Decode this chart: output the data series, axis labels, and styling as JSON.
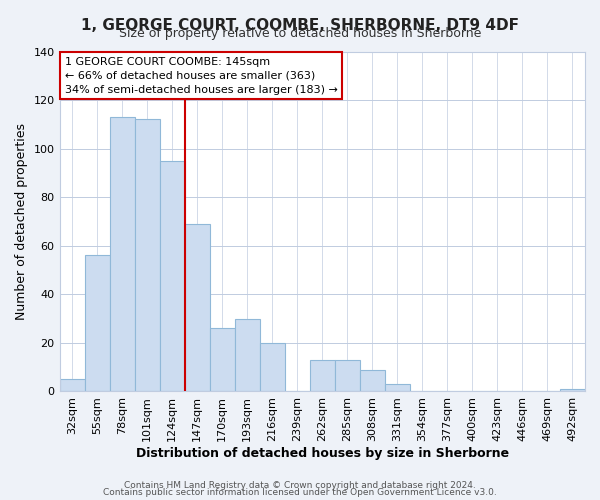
{
  "title": "1, GEORGE COURT, COOMBE, SHERBORNE, DT9 4DF",
  "subtitle": "Size of property relative to detached houses in Sherborne",
  "xlabel": "Distribution of detached houses by size in Sherborne",
  "ylabel": "Number of detached properties",
  "bar_labels": [
    "32sqm",
    "55sqm",
    "78sqm",
    "101sqm",
    "124sqm",
    "147sqm",
    "170sqm",
    "193sqm",
    "216sqm",
    "239sqm",
    "262sqm",
    "285sqm",
    "308sqm",
    "331sqm",
    "354sqm",
    "377sqm",
    "400sqm",
    "423sqm",
    "446sqm",
    "469sqm",
    "492sqm"
  ],
  "bar_values": [
    5,
    56,
    113,
    112,
    95,
    69,
    26,
    30,
    20,
    0,
    13,
    13,
    9,
    3,
    0,
    0,
    0,
    0,
    0,
    0,
    1
  ],
  "bar_color": "#ccdcf0",
  "bar_edge_color": "#90b8d8",
  "ylim": [
    0,
    140
  ],
  "yticks": [
    0,
    20,
    40,
    60,
    80,
    100,
    120,
    140
  ],
  "marker_line_index": 4,
  "annotation_title": "1 GEORGE COURT COOMBE: 145sqm",
  "annotation_line1": "← 66% of detached houses are smaller (363)",
  "annotation_line2": "34% of semi-detached houses are larger (183) →",
  "annotation_box_color": "#ffffff",
  "annotation_border_color": "#cc0000",
  "marker_line_color": "#cc0000",
  "footer_line1": "Contains HM Land Registry data © Crown copyright and database right 2024.",
  "footer_line2": "Contains public sector information licensed under the Open Government Licence v3.0.",
  "background_color": "#eef2f8",
  "plot_background_color": "#ffffff",
  "grid_color": "#c0cce0",
  "title_fontsize": 11,
  "subtitle_fontsize": 9,
  "ylabel_fontsize": 9,
  "xlabel_fontsize": 9,
  "tick_fontsize": 8
}
